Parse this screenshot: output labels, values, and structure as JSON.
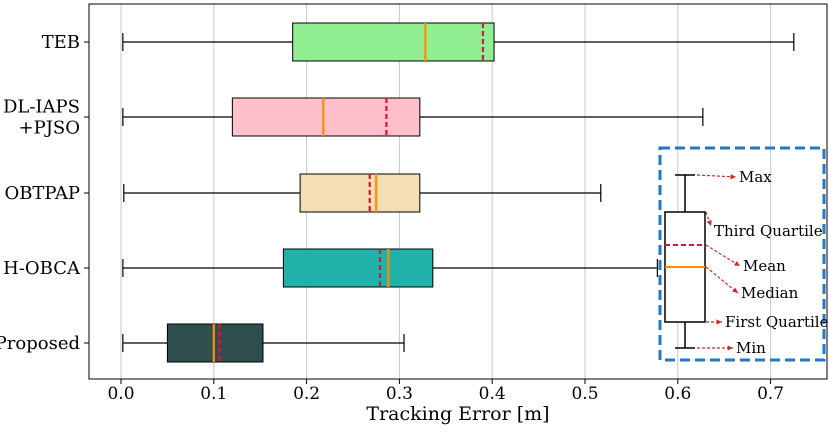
{
  "chart_data": {
    "type": "boxplot",
    "orientation": "horizontal",
    "xlabel": "Tracking Error [m]",
    "xlim": [
      -0.035,
      0.765
    ],
    "xticks": [
      0.0,
      0.1,
      0.2,
      0.3,
      0.4,
      0.5,
      0.6,
      0.7
    ],
    "xtick_labels": [
      "0.0",
      "0.1",
      "0.2",
      "0.3",
      "0.4",
      "0.5",
      "0.6",
      "0.7"
    ],
    "grid": "vertical",
    "categories": [
      [
        "TEB"
      ],
      [
        "DL-IAPS",
        "+PJSO"
      ],
      [
        "OBTPAP"
      ],
      [
        "H-OBCA"
      ],
      [
        "Proposed"
      ]
    ],
    "series": [
      {
        "min": 0.002,
        "q1": 0.185,
        "median": 0.328,
        "mean": 0.39,
        "q3": 0.402,
        "max": 0.725,
        "color": "#90EE90"
      },
      {
        "min": 0.002,
        "q1": 0.12,
        "median": 0.218,
        "mean": 0.286,
        "q3": 0.322,
        "max": 0.627,
        "color": "#FFC0CB"
      },
      {
        "min": 0.003,
        "q1": 0.193,
        "median": 0.275,
        "mean": 0.268,
        "q3": 0.322,
        "max": 0.517,
        "color": "#F5DEB3"
      },
      {
        "min": 0.002,
        "q1": 0.175,
        "median": 0.288,
        "mean": 0.279,
        "q3": 0.336,
        "max": 0.578,
        "color": "#20B2AA"
      },
      {
        "min": 0.002,
        "q1": 0.05,
        "median": 0.1,
        "mean": 0.106,
        "q3": 0.153,
        "max": 0.305,
        "color": "#2F4F4F"
      }
    ],
    "median_color": "#FF8C00",
    "mean_color": "#DC143C",
    "legend": {
      "position": "right",
      "labels": [
        "Max",
        "Third Quartile",
        "Mean",
        "Median",
        "First Quartile",
        "Min"
      ]
    }
  }
}
